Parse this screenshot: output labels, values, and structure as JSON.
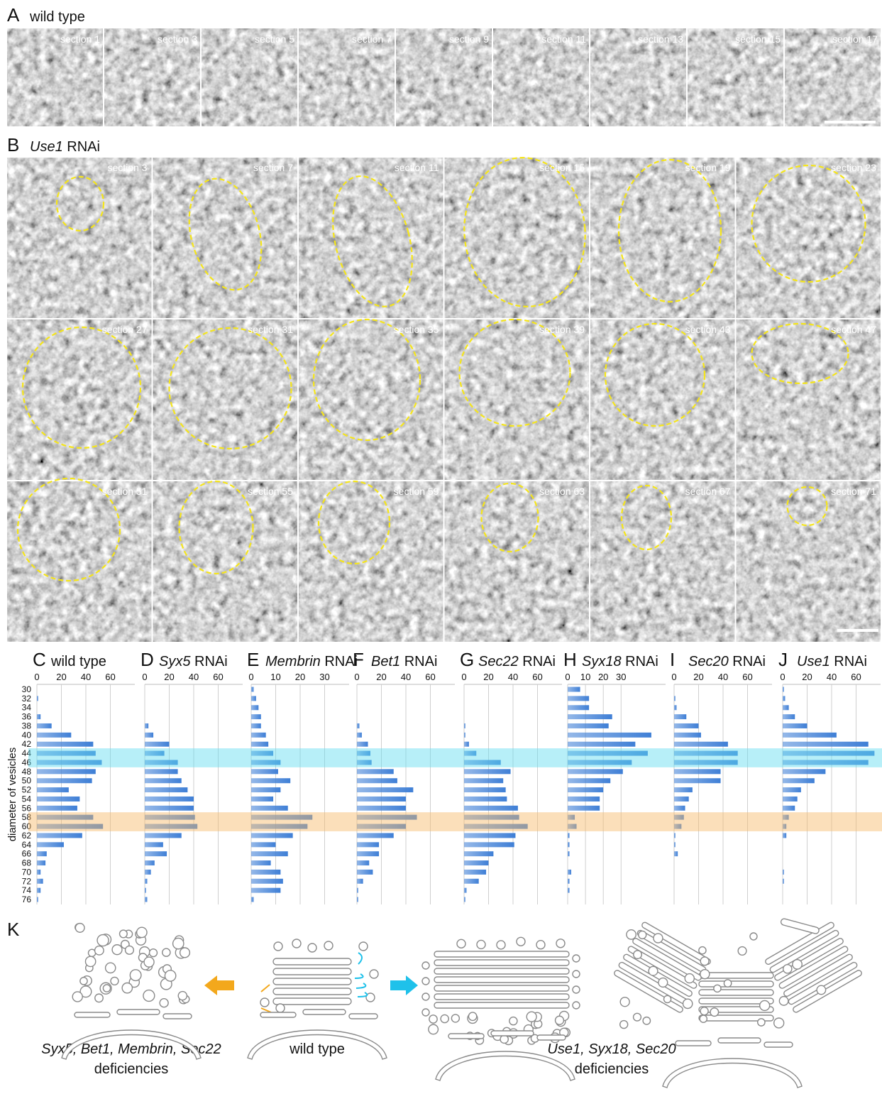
{
  "panel_a": {
    "label": "A",
    "title": "wild type",
    "sections": [
      "section 1",
      "section 3",
      "section 5",
      "section 7",
      "section 9",
      "section 11",
      "section 13",
      "section 15",
      "section 17"
    ]
  },
  "panel_b": {
    "label": "B",
    "gene": "Use1",
    "condition": "RNAi",
    "sections": [
      "section 3",
      "section 7",
      "section 11",
      "section 15",
      "section 19",
      "section 23",
      "section 27",
      "section 31",
      "section 35",
      "section 39",
      "section 43",
      "section 47",
      "section 51",
      "section 55",
      "section 59",
      "section 63",
      "section 67",
      "section 71"
    ]
  },
  "chart_data": [
    {
      "type": "bar",
      "orientation": "horizontal",
      "label": "C",
      "title": "wild type",
      "y_label": "diameter of vesicles",
      "categories": [
        30,
        32,
        34,
        36,
        38,
        40,
        42,
        44,
        46,
        48,
        50,
        52,
        54,
        56,
        58,
        60,
        62,
        64,
        66,
        68,
        70,
        72,
        74,
        76
      ],
      "xlim": [
        0,
        80
      ],
      "xticks": [
        0,
        20,
        40,
        60
      ],
      "grid": true,
      "color": "#3f7fd6",
      "values": [
        0,
        1,
        0,
        3,
        12,
        28,
        46,
        48,
        53,
        48,
        45,
        26,
        35,
        33,
        46,
        54,
        37,
        22,
        8,
        7,
        3,
        5,
        3,
        1
      ]
    },
    {
      "type": "bar",
      "orientation": "horizontal",
      "label": "D",
      "gene": "Syx5",
      "condition": "RNAi",
      "xlim": [
        0,
        80
      ],
      "xticks": [
        0,
        20,
        40,
        60
      ],
      "grid": true,
      "color": "#3f7fd6",
      "values": [
        0,
        0,
        0,
        0,
        3,
        7,
        20,
        16,
        27,
        27,
        30,
        35,
        40,
        40,
        41,
        43,
        30,
        15,
        18,
        8,
        5,
        2,
        1,
        2
      ]
    },
    {
      "type": "bar",
      "orientation": "horizontal",
      "label": "E",
      "gene": "Membrin",
      "condition": "RNAi",
      "xlim": [
        0,
        40
      ],
      "xticks": [
        0,
        10,
        20,
        30
      ],
      "grid": true,
      "color": "#3f7fd6",
      "values": [
        1,
        2,
        3,
        4,
        4,
        6,
        7,
        9,
        12,
        11,
        16,
        12,
        9,
        15,
        25,
        23,
        17,
        10,
        15,
        8,
        12,
        13,
        12,
        1
      ]
    },
    {
      "type": "bar",
      "orientation": "horizontal",
      "label": "F",
      "gene": "Bet1",
      "condition": "RNAi",
      "xlim": [
        0,
        80
      ],
      "xticks": [
        0,
        20,
        40,
        60
      ],
      "grid": true,
      "color": "#3f7fd6",
      "values": [
        0,
        0,
        0,
        0,
        2,
        4,
        9,
        11,
        12,
        30,
        33,
        46,
        40,
        40,
        49,
        40,
        30,
        18,
        18,
        10,
        13,
        5,
        1,
        1
      ]
    },
    {
      "type": "bar",
      "orientation": "horizontal",
      "label": "G",
      "gene": "Sec22",
      "condition": "RNAi",
      "xlim": [
        0,
        80
      ],
      "xticks": [
        0,
        20,
        40,
        60
      ],
      "grid": true,
      "color": "#3f7fd6",
      "values": [
        0,
        0,
        0,
        0,
        1,
        1,
        4,
        10,
        30,
        38,
        32,
        34,
        35,
        44,
        45,
        52,
        42,
        41,
        24,
        20,
        18,
        12,
        2,
        1
      ]
    },
    {
      "type": "bar",
      "orientation": "horizontal",
      "label": "H",
      "gene": "Syx18",
      "condition": "RNAi",
      "xlim": [
        0,
        55
      ],
      "xticks": [
        0,
        10,
        20,
        30
      ],
      "grid": true,
      "color": "#3f7fd6",
      "values": [
        7,
        12,
        12,
        25,
        23,
        47,
        38,
        45,
        36,
        31,
        24,
        20,
        18,
        18,
        4,
        5,
        1,
        1,
        1,
        0,
        2,
        1,
        1,
        0
      ]
    },
    {
      "type": "bar",
      "orientation": "horizontal",
      "label": "I",
      "gene": "Sec20",
      "condition": "RNAi",
      "xlim": [
        0,
        80
      ],
      "xticks": [
        0,
        20,
        40,
        60
      ],
      "grid": true,
      "color": "#3f7fd6",
      "values": [
        0,
        1,
        2,
        10,
        20,
        22,
        44,
        52,
        52,
        38,
        38,
        15,
        12,
        9,
        8,
        6,
        1,
        1,
        3,
        0,
        0,
        0,
        0,
        0
      ]
    },
    {
      "type": "bar",
      "orientation": "horizontal",
      "label": "J",
      "gene": "Use1",
      "condition": "RNAi",
      "xlim": [
        0,
        80
      ],
      "xticks": [
        0,
        20,
        40,
        60
      ],
      "grid": true,
      "color": "#3f7fd6",
      "values": [
        1,
        2,
        5,
        10,
        20,
        44,
        70,
        75,
        70,
        35,
        26,
        15,
        12,
        10,
        5,
        3,
        3,
        0,
        0,
        0,
        1,
        1,
        0,
        0
      ]
    }
  ],
  "panel_k": {
    "label": "K",
    "left_caption": "Syx5, Bet1, Membrin, Sec22",
    "left_caption_2": "deficiencies",
    "center_caption": "wild type",
    "right_caption": "Use1, Syx18, Sec20",
    "right_caption_2": "deficiencies"
  }
}
